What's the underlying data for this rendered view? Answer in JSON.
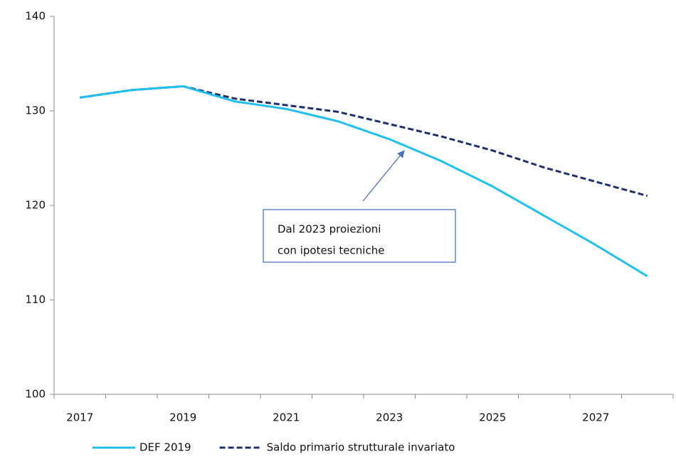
{
  "chart_data": {
    "type": "line",
    "categories": [
      "2017",
      null,
      "2019",
      null,
      "2021",
      null,
      "2023",
      null,
      "2025",
      null,
      "2027",
      null
    ],
    "series": [
      {
        "name": "DEF 2019",
        "color": "#1fbfef",
        "dash": false,
        "values": [
          131.4,
          132.2,
          132.6,
          131.0,
          130.2,
          128.9,
          127.0,
          124.7,
          122.0,
          118.9,
          115.8,
          112.5
        ]
      },
      {
        "name": "Saldo primario strutturale invariato",
        "color": "#1f2f6f",
        "dash": true,
        "values": [
          131.4,
          132.2,
          132.6,
          131.3,
          130.6,
          129.9,
          128.6,
          127.3,
          125.8,
          124.0,
          122.5,
          121.0
        ]
      }
    ],
    "ylim": [
      100,
      140
    ],
    "yticks": [
      100,
      110,
      120,
      130,
      140
    ],
    "grid": false,
    "annotation": [
      "Dal 2023 proiezioni",
      "con ipotesi tecniche"
    ],
    "legend": "bottom"
  }
}
